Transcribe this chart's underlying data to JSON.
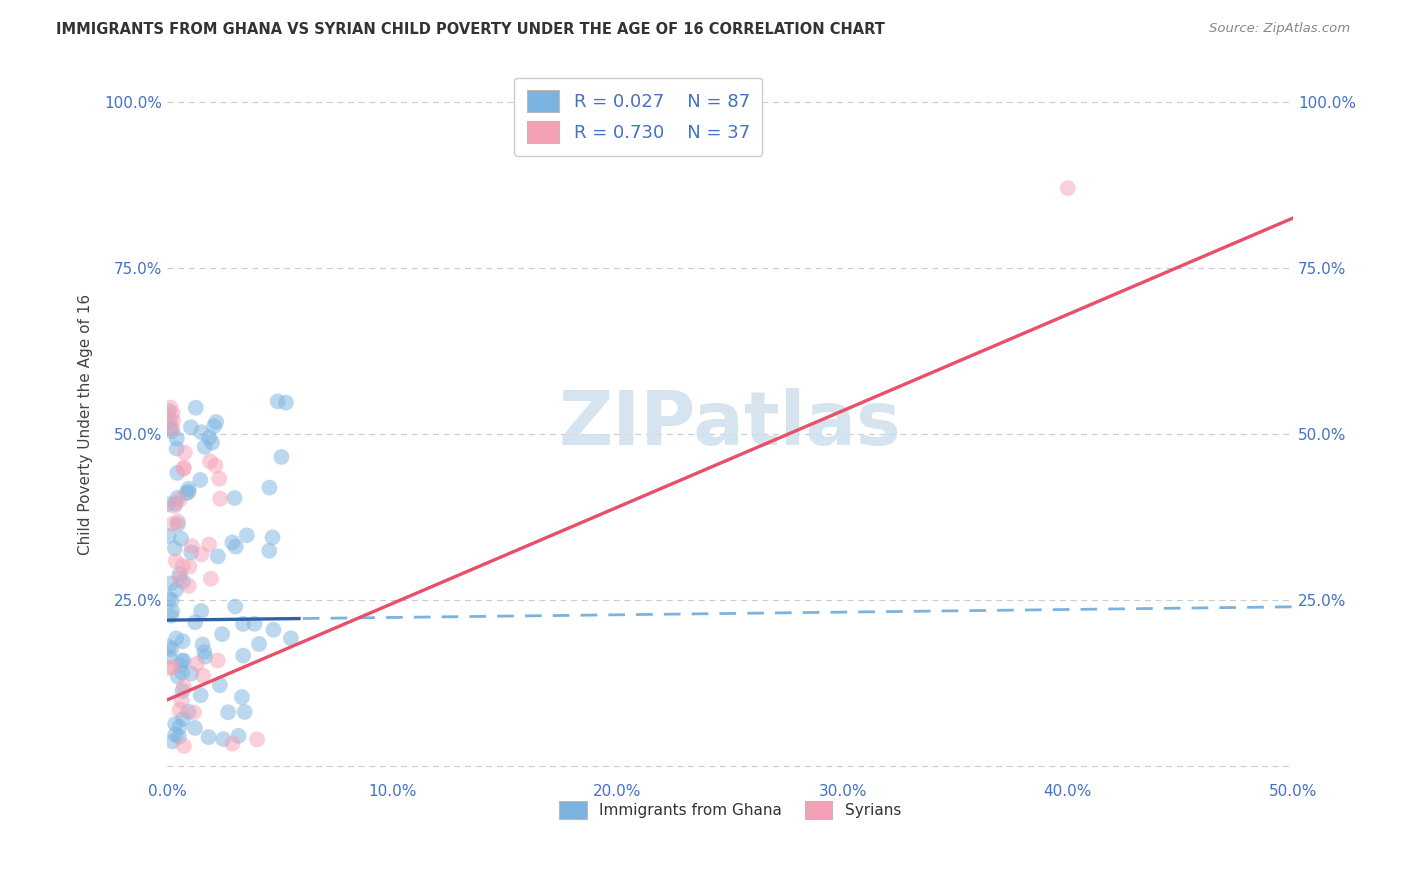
{
  "title": "IMMIGRANTS FROM GHANA VS SYRIAN CHILD POVERTY UNDER THE AGE OF 16 CORRELATION CHART",
  "source": "Source: ZipAtlas.com",
  "ylabel": "Child Poverty Under the Age of 16",
  "xlim": [
    0.0,
    0.5
  ],
  "ylim": [
    -0.02,
    1.05
  ],
  "ghana_R": 0.027,
  "ghana_N": 87,
  "syrian_R": 0.73,
  "syrian_N": 37,
  "ghana_color": "#7ab3e0",
  "syrian_color": "#f4a0b5",
  "ghana_line_solid_color": "#3060a8",
  "ghana_line_dash_color": "#7ab3e0",
  "syrian_line_color": "#e8506a",
  "watermark_text": "ZIPatlas",
  "watermark_color": "#cfe0ee",
  "grid_color": "#cccccc",
  "tick_color": "#4472c4",
  "title_color": "#333333",
  "source_color": "#888888",
  "legend_labels": [
    "Immigrants from Ghana",
    "Syrians"
  ],
  "xtick_labels": [
    "0.0%",
    "10.0%",
    "20.0%",
    "30.0%",
    "40.0%",
    "50.0%"
  ],
  "ytick_vals": [
    0.0,
    0.25,
    0.5,
    0.75,
    1.0
  ],
  "ytick_labels_left": [
    "",
    "25.0%",
    "50.0%",
    "75.0%",
    "100.0%"
  ],
  "ytick_labels_right": [
    "",
    "25.0%",
    "50.0%",
    "75.0%",
    "100.0%"
  ],
  "ghana_line_intercept": 0.22,
  "ghana_line_slope": 0.04,
  "syrian_line_intercept": 0.1,
  "syrian_line_slope": 1.45
}
